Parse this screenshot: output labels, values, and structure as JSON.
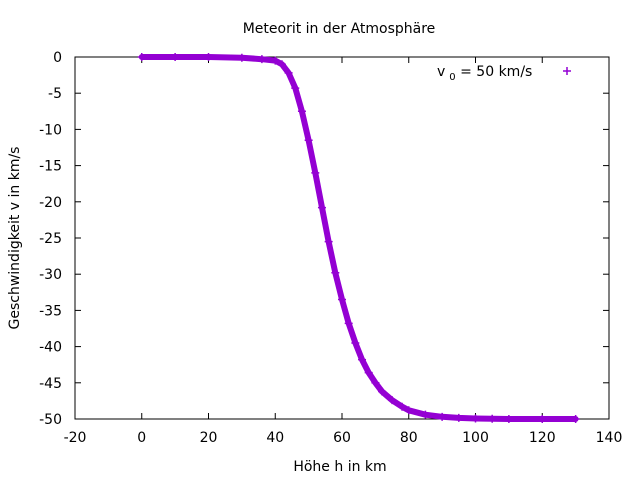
{
  "chart_data": {
    "type": "scatter",
    "title": "Meteorit in der Atmosphäre",
    "xlabel": "Höhe h in km",
    "ylabel": "Geschwindigkeit v in km/s",
    "xlim": [
      -20,
      140
    ],
    "ylim": [
      -50,
      0
    ],
    "xticks": [
      "-20",
      "0",
      "20",
      "40",
      "60",
      "80",
      "100",
      "120",
      "140"
    ],
    "yticks": [
      "0",
      "-5",
      "-10",
      "-15",
      "-20",
      "-25",
      "-30",
      "-35",
      "-40",
      "-45",
      "-50"
    ],
    "grid": false,
    "legend_position": "top-right",
    "series": [
      {
        "label_main": "v",
        "label_sub": "0",
        "label_rest": " = 50 km/s",
        "color": "#9400d3",
        "marker": "+",
        "x": [
          0,
          10,
          20,
          30,
          36,
          40,
          42,
          44,
          46,
          48,
          50,
          52,
          54,
          56,
          58,
          60,
          62,
          64,
          66,
          68,
          70,
          72,
          75,
          78,
          80,
          85,
          90,
          95,
          100,
          105,
          110,
          120,
          130
        ],
        "y": [
          0,
          0,
          0,
          -0.1,
          -0.3,
          -0.5,
          -1.0,
          -2.2,
          -4.3,
          -7.5,
          -11.5,
          -16.0,
          -20.8,
          -25.5,
          -29.8,
          -33.5,
          -36.8,
          -39.5,
          -41.8,
          -43.6,
          -45.0,
          -46.2,
          -47.4,
          -48.3,
          -48.8,
          -49.4,
          -49.7,
          -49.85,
          -49.93,
          -49.97,
          -50,
          -50,
          -50
        ]
      }
    ]
  }
}
